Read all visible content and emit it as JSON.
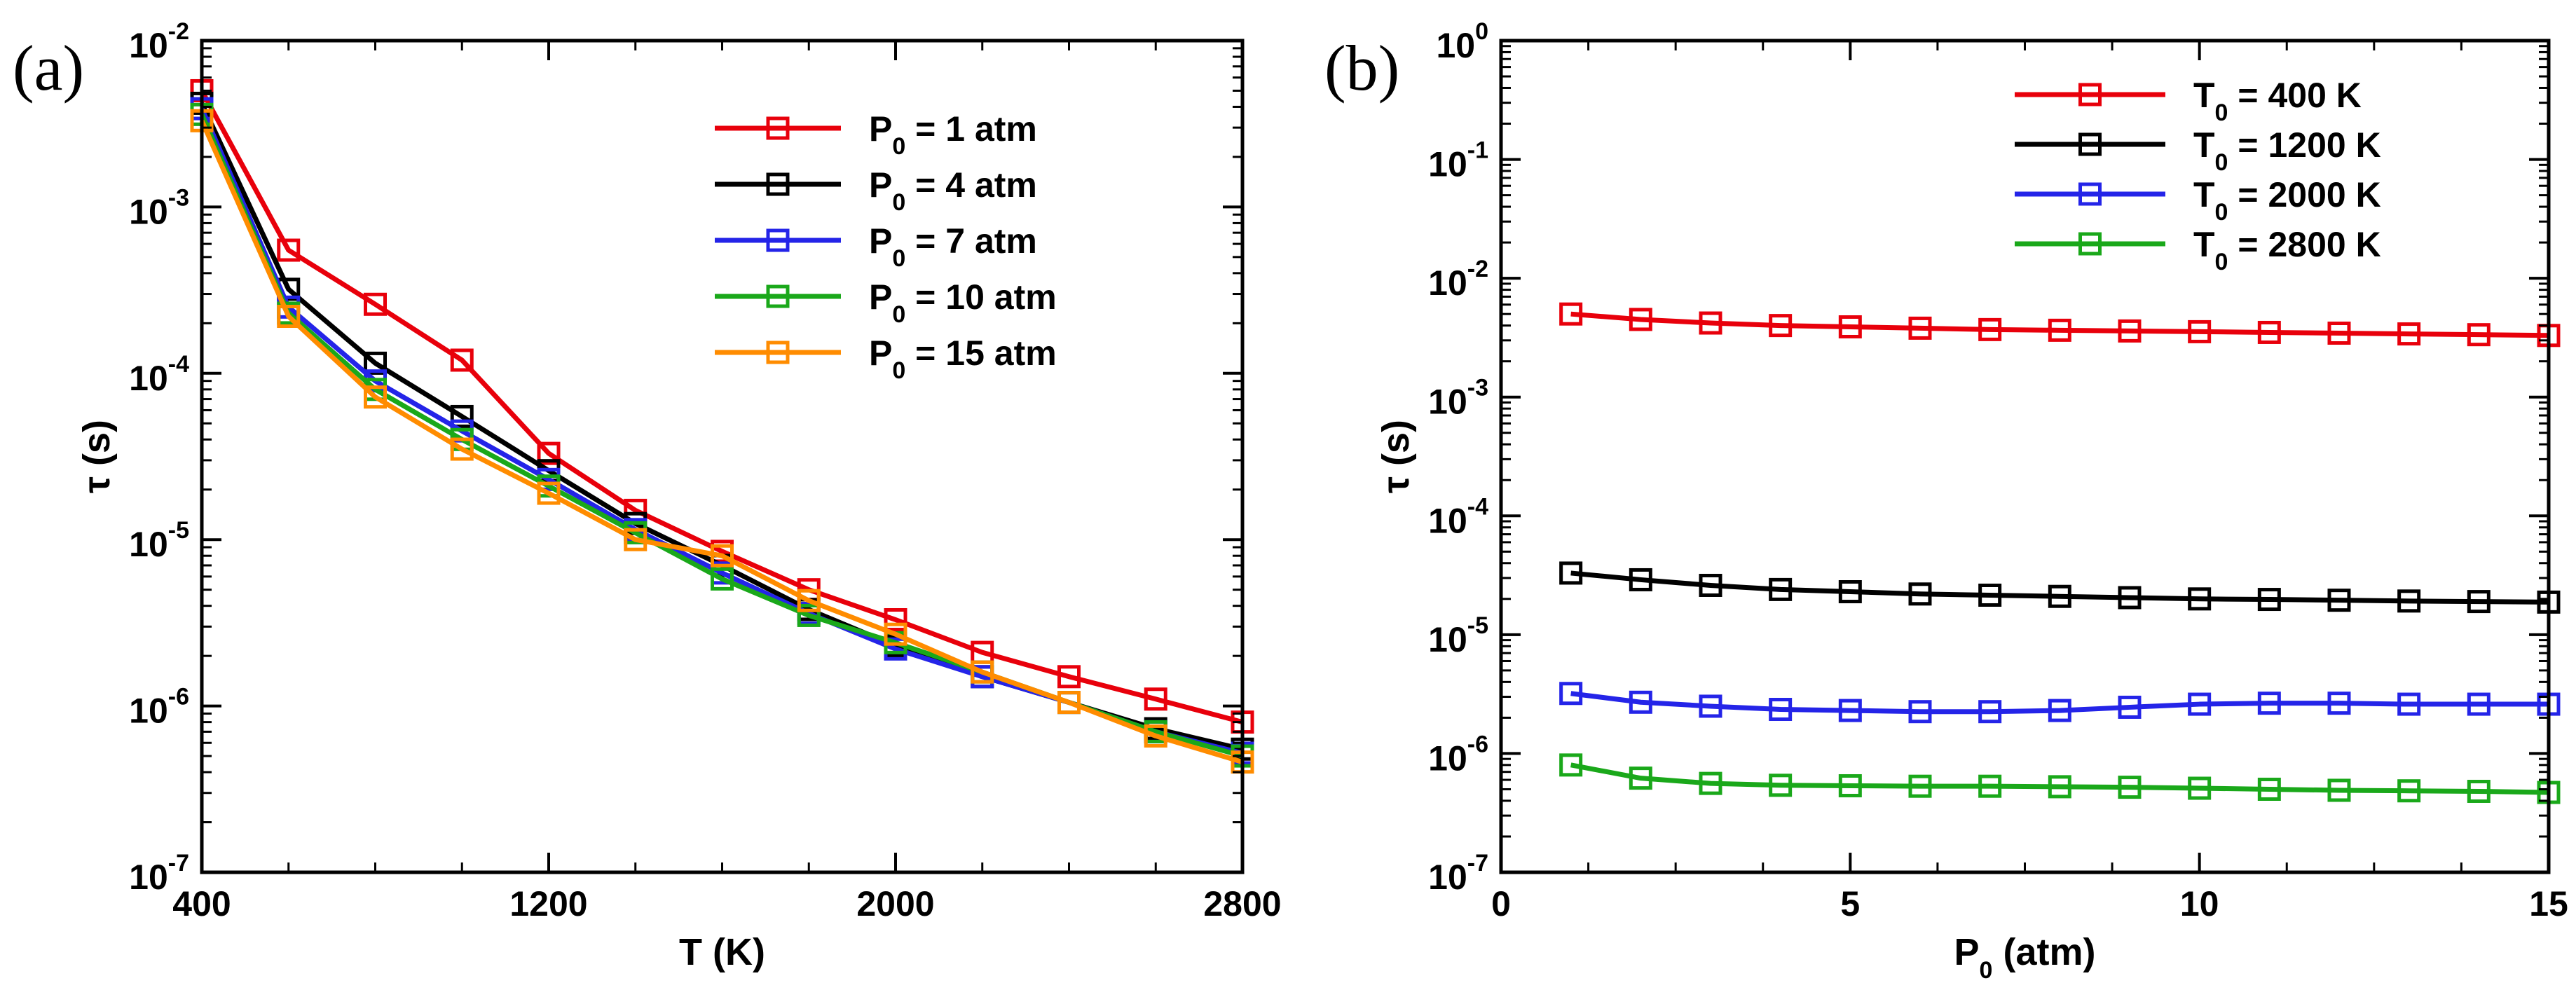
{
  "chart_data": [
    {
      "id": "a",
      "type": "line",
      "panel_label": "(a)",
      "xlabel": "T (K)",
      "ylabel": "τ (s)",
      "xscale": "linear",
      "yscale": "log",
      "xlim": [
        400,
        2800
      ],
      "ylim": [
        1e-07,
        0.01
      ],
      "xticks": [
        400,
        1200,
        2000,
        2800
      ],
      "xtick_labels": [
        "400",
        "1200",
        "2000",
        "2800"
      ],
      "yticks": [
        1e-07,
        1e-06,
        1e-05,
        0.0001,
        0.001,
        0.01
      ],
      "ytick_labels": [
        {
          "base": "10",
          "exp": "-7"
        },
        {
          "base": "10",
          "exp": "-6"
        },
        {
          "base": "10",
          "exp": "-5"
        },
        {
          "base": "10",
          "exp": "-4"
        },
        {
          "base": "10",
          "exp": "-3"
        },
        {
          "base": "10",
          "exp": "-2"
        }
      ],
      "legend_position": "top-right",
      "x": [
        400,
        600,
        800,
        1000,
        1200,
        1400,
        1600,
        1800,
        2000,
        2200,
        2400,
        2600,
        2800
      ],
      "series": [
        {
          "name": "P0 = 1 atm",
          "label": {
            "pre": "P",
            "sub": "0",
            "post": " = 1 atm"
          },
          "color": "#e8000b",
          "values": [
            0.005,
            0.00055,
            0.00026,
            0.00012,
            3.3e-05,
            1.5e-05,
            8.5e-06,
            5e-06,
            3.3e-06,
            2.1e-06,
            1.5e-06,
            1.1e-06,
            8e-07
          ]
        },
        {
          "name": "P0 = 4 atm",
          "label": {
            "pre": "P",
            "sub": "0",
            "post": " = 4 atm"
          },
          "color": "#000000",
          "values": [
            0.0042,
            0.00032,
            0.000115,
            5.5e-05,
            2.6e-05,
            1.25e-05,
            7e-06,
            3.8e-06,
            2.3e-06,
            1.5e-06,
            1.05e-06,
            7.3e-07,
            5.5e-07
          ]
        },
        {
          "name": "P0 = 7 atm",
          "label": {
            "pre": "P",
            "sub": "0",
            "post": " = 7 atm"
          },
          "color": "#2424e8",
          "values": [
            0.0039,
            0.00025,
            9e-05,
            4.5e-05,
            2.3e-05,
            1.15e-05,
            6.3e-06,
            3.6e-06,
            2.2e-06,
            1.5e-06,
            1.05e-06,
            7e-07,
            5.2e-07
          ]
        },
        {
          "name": "P0 = 10 atm",
          "label": {
            "pre": "P",
            "sub": "0",
            "post": " = 10 atm"
          },
          "color": "#1aa81a",
          "values": [
            0.0036,
            0.00023,
            8e-05,
            4e-05,
            2.1e-05,
            1.1e-05,
            5.8e-06,
            3.5e-06,
            2.4e-06,
            1.6e-06,
            1.05e-06,
            7e-07,
            5e-07
          ]
        },
        {
          "name": "P0 = 15 atm",
          "label": {
            "pre": "P",
            "sub": "0",
            "post": " = 15 atm"
          },
          "color": "#ff8c00",
          "values": [
            0.0033,
            0.00022,
            7.2e-05,
            3.5e-05,
            1.9e-05,
            1e-05,
            8e-06,
            4.3e-06,
            2.7e-06,
            1.6e-06,
            1.05e-06,
            6.6e-07,
            4.6e-07
          ]
        }
      ]
    },
    {
      "id": "b",
      "type": "line",
      "panel_label": "(b)",
      "xlabel": {
        "pre": "P",
        "sub": "0",
        "post": " (atm)"
      },
      "ylabel": "τ (s)",
      "xscale": "linear",
      "yscale": "log",
      "xlim": [
        0,
        15
      ],
      "ylim": [
        1e-07,
        1
      ],
      "xticks": [
        0,
        5,
        10,
        15
      ],
      "xtick_labels": [
        "0",
        "5",
        "10",
        "15"
      ],
      "yticks": [
        1e-07,
        1e-06,
        1e-05,
        0.0001,
        0.001,
        0.01,
        0.1,
        1
      ],
      "ytick_labels": [
        {
          "base": "10",
          "exp": "-7"
        },
        {
          "base": "10",
          "exp": "-6"
        },
        {
          "base": "10",
          "exp": "-5"
        },
        {
          "base": "10",
          "exp": "-4"
        },
        {
          "base": "10",
          "exp": "-3"
        },
        {
          "base": "10",
          "exp": "-2"
        },
        {
          "base": "10",
          "exp": "-1"
        },
        {
          "base": "10",
          "exp": "0"
        }
      ],
      "legend_position": "top-right",
      "x": [
        1,
        2,
        3,
        4,
        5,
        6,
        7,
        8,
        9,
        10,
        11,
        12,
        13,
        14,
        15
      ],
      "series": [
        {
          "name": "T0 = 400 K",
          "label": {
            "pre": "T",
            "sub": "0",
            "post": " = 400 K"
          },
          "color": "#e8000b",
          "values": [
            0.005,
            0.0045,
            0.0042,
            0.004,
            0.0039,
            0.0038,
            0.0037,
            0.00365,
            0.0036,
            0.00355,
            0.0035,
            0.00345,
            0.0034,
            0.00335,
            0.0033
          ]
        },
        {
          "name": "T0 = 1200 K",
          "label": {
            "pre": "T",
            "sub": "0",
            "post": " = 1200 K"
          },
          "color": "#000000",
          "values": [
            3.3e-05,
            2.9e-05,
            2.6e-05,
            2.4e-05,
            2.3e-05,
            2.2e-05,
            2.15e-05,
            2.1e-05,
            2.05e-05,
            2e-05,
            1.98e-05,
            1.95e-05,
            1.92e-05,
            1.9e-05,
            1.88e-05
          ]
        },
        {
          "name": "T0 = 2000 K",
          "label": {
            "pre": "T",
            "sub": "0",
            "post": " = 2000 K"
          },
          "color": "#2424e8",
          "values": [
            3.2e-06,
            2.7e-06,
            2.5e-06,
            2.35e-06,
            2.3e-06,
            2.25e-06,
            2.25e-06,
            2.3e-06,
            2.45e-06,
            2.6e-06,
            2.65e-06,
            2.65e-06,
            2.6e-06,
            2.6e-06,
            2.6e-06
          ]
        },
        {
          "name": "T0 = 2800 K",
          "label": {
            "pre": "T",
            "sub": "0",
            "post": " = 2800 K"
          },
          "color": "#1aa81a",
          "values": [
            8e-07,
            6.2e-07,
            5.6e-07,
            5.4e-07,
            5.35e-07,
            5.3e-07,
            5.3e-07,
            5.25e-07,
            5.2e-07,
            5.1e-07,
            5e-07,
            4.9e-07,
            4.85e-07,
            4.8e-07,
            4.7e-07
          ]
        }
      ]
    }
  ]
}
